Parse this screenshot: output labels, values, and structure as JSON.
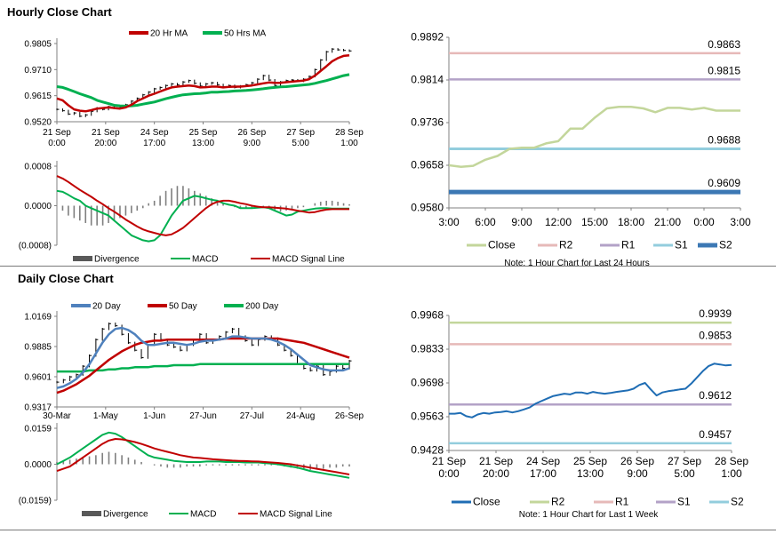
{
  "colors": {
    "ma20": "#c00000",
    "ma50": "#00b050",
    "d20": "#4f81bd",
    "d50": "#c00000",
    "d200": "#00b050",
    "macd": "#00b050",
    "signal": "#c00000",
    "divergence": "#7f7f7f",
    "close_hourly": "#c3d69b",
    "close_daily": "#1f6db4",
    "r2": "#e6b9b8",
    "r1": "#b3a2c7",
    "s1": "#93cddd",
    "s2": "#3c78b4",
    "r2_daily": "#c3d69b",
    "r1_daily": "#e6b9b8",
    "s1_daily": "#b3a2c7",
    "s2_daily": "#93cddd"
  },
  "hourly_title": "Hourly Close Chart",
  "daily_title": "Daily Close Chart",
  "chart_data": [
    {
      "id": "hourly_price",
      "type": "line",
      "legend": [
        "20 Hr MA",
        "50 Hrs MA"
      ],
      "yticks": [
        "0.9805",
        "0.9710",
        "0.9615",
        "0.9520"
      ],
      "ylim": [
        0.952,
        0.9805
      ],
      "xticks": [
        {
          "l1": "21 Sep",
          "l2": "0:00"
        },
        {
          "l1": "21 Sep",
          "l2": "20:00"
        },
        {
          "l1": "24 Sep",
          "l2": "17:00"
        },
        {
          "l1": "25 Sep",
          "l2": "13:00"
        },
        {
          "l1": "26 Sep",
          "l2": "9:00"
        },
        {
          "l1": "27 Sep",
          "l2": "5:00"
        },
        {
          "l1": "28 Sep",
          "l2": "1:00"
        }
      ],
      "ohlc_close": [
        0.9565,
        0.956,
        0.9548,
        0.9552,
        0.954,
        0.9545,
        0.9558,
        0.957,
        0.9565,
        0.9575,
        0.9578,
        0.9572,
        0.9582,
        0.9595,
        0.9605,
        0.9618,
        0.9628,
        0.964,
        0.9645,
        0.9652,
        0.9658,
        0.9655,
        0.9665,
        0.967,
        0.966,
        0.965,
        0.9658,
        0.9662,
        0.9655,
        0.9648,
        0.9652,
        0.9645,
        0.965,
        0.9655,
        0.9662,
        0.9675,
        0.9688,
        0.9672,
        0.9652,
        0.9665,
        0.967,
        0.9672,
        0.9668,
        0.9675,
        0.9685,
        0.971,
        0.9745,
        0.9775,
        0.9785,
        0.9782,
        0.978,
        0.9778
      ],
      "series": [
        {
          "name": "20 Hr MA",
          "values": [
            0.9605,
            0.9598,
            0.958,
            0.9565,
            0.956,
            0.9558,
            0.9562,
            0.9568,
            0.957,
            0.9572,
            0.957,
            0.9568,
            0.9572,
            0.9582,
            0.9595,
            0.9605,
            0.9615,
            0.9622,
            0.963,
            0.9638,
            0.9645,
            0.9648,
            0.965,
            0.9652,
            0.965,
            0.9645,
            0.9646,
            0.9648,
            0.9648,
            0.9645,
            0.9647,
            0.9648,
            0.9648,
            0.965,
            0.9652,
            0.9656,
            0.966,
            0.9663,
            0.9662,
            0.9662,
            0.9664,
            0.9666,
            0.9668,
            0.967,
            0.9675,
            0.9688,
            0.9705,
            0.9722,
            0.974,
            0.9752,
            0.976,
            0.9762
          ]
        },
        {
          "name": "50 Hrs MA",
          "values": [
            0.9648,
            0.9645,
            0.9638,
            0.963,
            0.9622,
            0.9615,
            0.9608,
            0.9598,
            0.9592,
            0.9586,
            0.958,
            0.9578,
            0.9577,
            0.9578,
            0.958,
            0.9584,
            0.9588,
            0.9592,
            0.9598,
            0.9604,
            0.9609,
            0.9614,
            0.9618,
            0.962,
            0.9622,
            0.9623,
            0.9625,
            0.9628,
            0.9628,
            0.9629,
            0.963,
            0.9632,
            0.9633,
            0.9634,
            0.9636,
            0.9638,
            0.964,
            0.9643,
            0.9645,
            0.9647,
            0.9648,
            0.965,
            0.9652,
            0.9654,
            0.9656,
            0.966,
            0.9665,
            0.967,
            0.9676,
            0.9682,
            0.9688,
            0.9692
          ]
        }
      ]
    },
    {
      "id": "hourly_macd",
      "type": "line",
      "legend": [
        "Divergence",
        "MACD",
        "MACD Signal Line"
      ],
      "yticks": [
        "0.0008",
        "0.0000",
        "(0.0008)"
      ],
      "ylim": [
        -0.0008,
        0.0008
      ],
      "divergence": [
        0.0,
        -0.0001,
        -0.0002,
        -0.00025,
        -0.0003,
        -0.00035,
        -0.0004,
        -0.0004,
        -0.0004,
        -0.00035,
        -0.0003,
        -0.00025,
        -0.0002,
        -0.00015,
        -0.0001,
        -5e-05,
        5e-05,
        0.0001,
        0.0002,
        0.0003,
        0.00035,
        0.0004,
        0.0004,
        0.00035,
        0.0003,
        0.00025,
        0.0002,
        0.00015,
        0.0001,
        5e-05,
        0.0,
        -3e-05,
        -5e-05,
        -5e-05,
        -5e-05,
        -4e-05,
        -3e-05,
        -5e-05,
        -0.0001,
        -0.00012,
        -0.0001,
        -8e-05,
        -5e-05,
        -3e-05,
        0.0,
        5e-05,
        8e-05,
        0.0001,
        0.0001,
        8e-05,
        5e-05,
        3e-05
      ],
      "series": [
        {
          "name": "MACD",
          "values": [
            0.0003,
            0.00028,
            0.00022,
            0.00015,
            0.0001,
            0.0,
            -5e-05,
            -0.0001,
            -0.00015,
            -0.0002,
            -0.0003,
            -0.0004,
            -0.0005,
            -0.0006,
            -0.00065,
            -0.0007,
            -0.00072,
            -0.0007,
            -0.0006,
            -0.0004,
            -0.0002,
            -5e-05,
            0.0001,
            0.00015,
            0.0002,
            0.00018,
            0.00015,
            0.00012,
            0.0001,
            5e-05,
            2e-05,
            0.0,
            -5e-05,
            -5e-05,
            -5e-05,
            -4e-05,
            -3e-05,
            -5e-05,
            -0.0001,
            -0.00015,
            -0.0002,
            -0.00018,
            -0.00012,
            -0.0001,
            -8e-05,
            -6e-05,
            -5e-05,
            -5e-05,
            -6e-05,
            -6e-05,
            -6e-05,
            -6e-05
          ]
        },
        {
          "name": "MACD Signal Line",
          "values": [
            0.0006,
            0.00055,
            0.00048,
            0.0004,
            0.00032,
            0.00025,
            0.00018,
            0.0001,
            3e-05,
            -5e-05,
            -0.00012,
            -0.0002,
            -0.00028,
            -0.00035,
            -0.00042,
            -0.00048,
            -0.00052,
            -0.00055,
            -0.00058,
            -0.0006,
            -0.00058,
            -0.00052,
            -0.00045,
            -0.00035,
            -0.00025,
            -0.00015,
            -5e-05,
            3e-05,
            8e-05,
            0.0001,
            0.0001,
            8e-05,
            5e-05,
            3e-05,
            0.0,
            -2e-05,
            -3e-05,
            -3e-05,
            -4e-05,
            -5e-05,
            -6e-05,
            -8e-05,
            -0.0001,
            -0.00012,
            -0.00014,
            -0.00013,
            -0.0001,
            -8e-05,
            -7e-05,
            -7e-05,
            -7e-05,
            -7e-05
          ]
        }
      ]
    },
    {
      "id": "hourly_levels",
      "type": "line",
      "yticks": [
        "0.9892",
        "0.9814",
        "0.9736",
        "0.9658",
        "0.9580"
      ],
      "ylim": [
        0.958,
        0.9892
      ],
      "xticks": [
        "3:00",
        "6:00",
        "9:00",
        "12:00",
        "15:00",
        "18:00",
        "21:00",
        "0:00",
        "3:00"
      ],
      "legend": [
        "Close",
        "R2",
        "R1",
        "S1",
        "S2"
      ],
      "note": "Note: 1 Hour Chart for Last 24 Hours",
      "levels": [
        {
          "name": "R2",
          "value": 0.9863,
          "label": "0.9863"
        },
        {
          "name": "R1",
          "value": 0.9815,
          "label": "0.9815"
        },
        {
          "name": "S1",
          "value": 0.9688,
          "label": "0.9688"
        },
        {
          "name": "S2",
          "value": 0.9609,
          "label": "0.9609"
        }
      ],
      "close": [
        0.9658,
        0.9655,
        0.9657,
        0.9668,
        0.9675,
        0.9688,
        0.969,
        0.969,
        0.9698,
        0.9702,
        0.9725,
        0.9725,
        0.9745,
        0.9762,
        0.9765,
        0.9765,
        0.9762,
        0.9755,
        0.9763,
        0.9763,
        0.976,
        0.9763,
        0.9758,
        0.9758,
        0.9758
      ]
    },
    {
      "id": "daily_price",
      "type": "line",
      "legend": [
        "20 Day",
        "50 Day",
        "200 Day"
      ],
      "yticks": [
        "1.0169",
        "0.9885",
        "0.9601",
        "0.9317"
      ],
      "ylim": [
        0.9317,
        1.0169
      ],
      "xticks": [
        "30-Mar",
        "1-May",
        "1-Jun",
        "27-Jun",
        "27-Jul",
        "24-Aug",
        "26-Sep"
      ],
      "ohlc_close": [
        0.955,
        0.957,
        0.96,
        0.962,
        0.97,
        0.98,
        0.995,
        1.005,
        1.01,
        1.008,
        1.0,
        0.992,
        0.985,
        0.978,
        0.99,
        1.0,
        0.995,
        0.99,
        0.988,
        0.985,
        0.99,
        0.995,
        1.0,
        0.992,
        0.995,
        0.998,
        1.002,
        1.005,
        0.998,
        0.994,
        0.99,
        0.995,
        0.998,
        0.996,
        0.99,
        0.985,
        0.98,
        0.972,
        0.968,
        0.966,
        0.97,
        0.962,
        0.965,
        0.97,
        0.968,
        0.975
      ],
      "series": [
        {
          "name": "20 Day",
          "values": [
            0.9495,
            0.951,
            0.954,
            0.958,
            0.964,
            0.972,
            0.982,
            0.992,
            1.0,
            1.005,
            1.006,
            1.004,
            1.0,
            0.994,
            0.99,
            0.99,
            0.991,
            0.992,
            0.992,
            0.991,
            0.99,
            0.991,
            0.993,
            0.994,
            0.994,
            0.995,
            0.996,
            0.998,
            0.998,
            0.997,
            0.996,
            0.996,
            0.996,
            0.995,
            0.993,
            0.99,
            0.986,
            0.981,
            0.976,
            0.971,
            0.969,
            0.967,
            0.966,
            0.966,
            0.966,
            0.968
          ]
        },
        {
          "name": "50 Day",
          "values": [
            0.945,
            0.947,
            0.95,
            0.953,
            0.957,
            0.961,
            0.966,
            0.971,
            0.976,
            0.98,
            0.984,
            0.987,
            0.99,
            0.992,
            0.993,
            0.994,
            0.994,
            0.995,
            0.995,
            0.995,
            0.995,
            0.995,
            0.995,
            0.995,
            0.995,
            0.995,
            0.996,
            0.996,
            0.996,
            0.996,
            0.996,
            0.996,
            0.996,
            0.996,
            0.996,
            0.995,
            0.994,
            0.993,
            0.992,
            0.99,
            0.988,
            0.986,
            0.984,
            0.982,
            0.98,
            0.978
          ]
        },
        {
          "name": "200 Day",
          "values": [
            0.965,
            0.965,
            0.965,
            0.965,
            0.965,
            0.966,
            0.966,
            0.966,
            0.967,
            0.967,
            0.968,
            0.968,
            0.969,
            0.969,
            0.969,
            0.97,
            0.97,
            0.97,
            0.971,
            0.971,
            0.971,
            0.971,
            0.972,
            0.972,
            0.972,
            0.972,
            0.972,
            0.972,
            0.972,
            0.972,
            0.972,
            0.972,
            0.972,
            0.972,
            0.972,
            0.972,
            0.972,
            0.972,
            0.972,
            0.972,
            0.972,
            0.972,
            0.972,
            0.972,
            0.972,
            0.972
          ]
        }
      ]
    },
    {
      "id": "daily_macd",
      "type": "line",
      "legend": [
        "Divergence",
        "MACD",
        "MACD Signal Line"
      ],
      "yticks": [
        "0.0159",
        "0.0000",
        "(0.0159)"
      ],
      "ylim": [
        -0.0159,
        0.0159
      ],
      "divergence": [
        0.001,
        0.0015,
        0.002,
        0.0025,
        0.003,
        0.0035,
        0.004,
        0.005,
        0.0055,
        0.005,
        0.004,
        0.003,
        0.002,
        0.001,
        0.0,
        -0.0005,
        -0.001,
        -0.0015,
        -0.0015,
        -0.0015,
        -0.001,
        -0.001,
        -0.001,
        -0.0005,
        -0.0005,
        -0.0005,
        -0.0005,
        -0.0005,
        -0.0005,
        -0.0005,
        -0.0005,
        -0.0005,
        -0.0005,
        -0.0005,
        -0.0005,
        -0.001,
        -0.0015,
        -0.002,
        -0.0025,
        -0.0025,
        -0.002,
        -0.002,
        -0.0015,
        -0.0015,
        -0.001,
        -0.001
      ],
      "series": [
        {
          "name": "MACD",
          "values": [
            0.0,
            0.0015,
            0.003,
            0.005,
            0.007,
            0.009,
            0.011,
            0.013,
            0.014,
            0.0135,
            0.012,
            0.01,
            0.008,
            0.006,
            0.004,
            0.003,
            0.0025,
            0.002,
            0.0015,
            0.0012,
            0.001,
            0.001,
            0.001,
            0.0012,
            0.0012,
            0.0012,
            0.001,
            0.001,
            0.001,
            0.0008,
            0.0008,
            0.0008,
            0.0005,
            0.0003,
            0.0,
            -0.0005,
            -0.001,
            -0.0015,
            -0.0022,
            -0.003,
            -0.0035,
            -0.004,
            -0.0045,
            -0.005,
            -0.0055,
            -0.006
          ]
        },
        {
          "name": "MACD Signal Line",
          "values": [
            -0.003,
            -0.002,
            -0.001,
            0.001,
            0.003,
            0.005,
            0.007,
            0.009,
            0.0105,
            0.0112,
            0.011,
            0.0105,
            0.0098,
            0.009,
            0.008,
            0.007,
            0.0062,
            0.0055,
            0.0048,
            0.004,
            0.0035,
            0.003,
            0.0028,
            0.0025,
            0.0022,
            0.002,
            0.0018,
            0.0016,
            0.0015,
            0.0014,
            0.0013,
            0.0012,
            0.001,
            0.0008,
            0.0006,
            0.0003,
            0.0,
            -0.0005,
            -0.001,
            -0.0015,
            -0.002,
            -0.0025,
            -0.003,
            -0.0035,
            -0.004,
            -0.0045
          ]
        }
      ]
    },
    {
      "id": "daily_levels",
      "type": "line",
      "yticks": [
        "0.9968",
        "0.9833",
        "0.9698",
        "0.9563",
        "0.9428"
      ],
      "ylim": [
        0.9428,
        0.9968
      ],
      "xticks": [
        {
          "l1": "21 Sep",
          "l2": "0:00"
        },
        {
          "l1": "21 Sep",
          "l2": "20:00"
        },
        {
          "l1": "24 Sep",
          "l2": "17:00"
        },
        {
          "l1": "25 Sep",
          "l2": "13:00"
        },
        {
          "l1": "26 Sep",
          "l2": "9:00"
        },
        {
          "l1": "27 Sep",
          "l2": "5:00"
        },
        {
          "l1": "28 Sep",
          "l2": "1:00"
        }
      ],
      "legend": [
        "Close",
        "R2",
        "R1",
        "S1",
        "S2"
      ],
      "note": "Note: 1 Hour Chart for Last 1 Week",
      "levels": [
        {
          "name": "R2",
          "value": 0.9939,
          "label": "0.9939"
        },
        {
          "name": "R1",
          "value": 0.9853,
          "label": "0.9853"
        },
        {
          "name": "S1",
          "value": 0.9612,
          "label": "0.9612"
        },
        {
          "name": "S2",
          "value": 0.9457,
          "label": "0.9457"
        }
      ],
      "close": [
        0.9575,
        0.9575,
        0.9578,
        0.9565,
        0.956,
        0.9572,
        0.9578,
        0.9575,
        0.958,
        0.9582,
        0.9585,
        0.958,
        0.9585,
        0.9592,
        0.96,
        0.9615,
        0.9625,
        0.9635,
        0.9645,
        0.965,
        0.9655,
        0.9652,
        0.966,
        0.966,
        0.9655,
        0.9662,
        0.9658,
        0.9655,
        0.9658,
        0.9662,
        0.9665,
        0.9668,
        0.9675,
        0.969,
        0.9698,
        0.9672,
        0.9648,
        0.966,
        0.9665,
        0.9668,
        0.9672,
        0.9675,
        0.9695,
        0.972,
        0.9745,
        0.9765,
        0.9775,
        0.9772,
        0.9768,
        0.977
      ]
    }
  ]
}
